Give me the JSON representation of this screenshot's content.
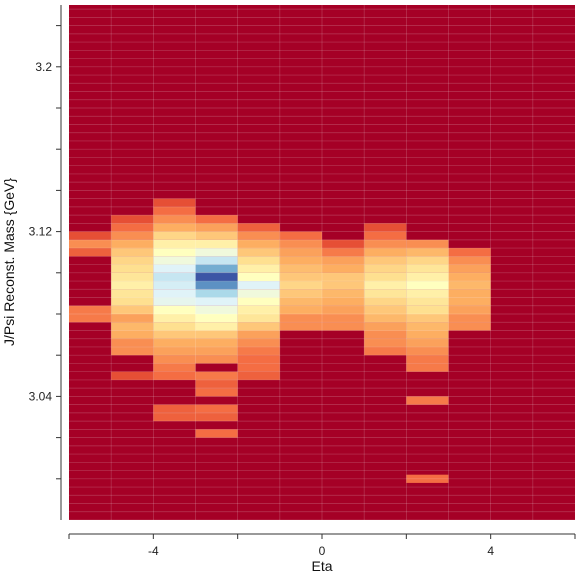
{
  "chart_data": {
    "type": "heatmap",
    "title": "",
    "xlabel": "Eta",
    "ylabel": "J/Psi Reconst. Mass {GeV}",
    "xlim": [
      -6,
      6
    ],
    "ylim": [
      2.98,
      3.23
    ],
    "x_bin_width": 1,
    "y_bin_width": 0.004,
    "x_ticks": [
      -4,
      0,
      4
    ],
    "x_tick_labels": [
      "-4",
      "0",
      "4"
    ],
    "y_ticks": [
      3.04,
      3.12,
      3.2
    ],
    "y_tick_labels": [
      "3.04",
      "3.12",
      "3.2"
    ],
    "background_value": 0,
    "colormap": [
      "#a50026",
      "#d73027",
      "#f46d43",
      "#fdae61",
      "#fee090",
      "#ffffbf",
      "#e0f3f8",
      "#abd9e9",
      "#74add1",
      "#4575b4",
      "#313695"
    ],
    "grid": true,
    "columns": [
      {
        "x": -5.5,
        "cells": [
          [
            3.078,
            0.22
          ],
          [
            3.082,
            0.22
          ],
          [
            3.11,
            0.18
          ],
          [
            3.114,
            0.25
          ],
          [
            3.118,
            0.15
          ]
        ]
      },
      {
        "x": -4.5,
        "cells": [
          [
            3.05,
            0.15
          ],
          [
            3.062,
            0.25
          ],
          [
            3.066,
            0.25
          ],
          [
            3.07,
            0.3
          ],
          [
            3.074,
            0.32
          ],
          [
            3.078,
            0.28
          ],
          [
            3.082,
            0.35
          ],
          [
            3.086,
            0.4
          ],
          [
            3.09,
            0.42
          ],
          [
            3.094,
            0.45
          ],
          [
            3.098,
            0.42
          ],
          [
            3.102,
            0.4
          ],
          [
            3.106,
            0.38
          ],
          [
            3.11,
            0.35
          ],
          [
            3.114,
            0.3
          ],
          [
            3.118,
            0.25
          ],
          [
            3.122,
            0.2
          ],
          [
            3.126,
            0.15
          ]
        ]
      },
      {
        "x": -3.5,
        "cells": [
          [
            3.03,
            0.18
          ],
          [
            3.034,
            0.18
          ],
          [
            3.05,
            0.2
          ],
          [
            3.054,
            0.22
          ],
          [
            3.058,
            0.25
          ],
          [
            3.062,
            0.28
          ],
          [
            3.066,
            0.3
          ],
          [
            3.07,
            0.35
          ],
          [
            3.074,
            0.4
          ],
          [
            3.078,
            0.45
          ],
          [
            3.082,
            0.5
          ],
          [
            3.086,
            0.58
          ],
          [
            3.09,
            0.6
          ],
          [
            3.094,
            0.62
          ],
          [
            3.098,
            0.65
          ],
          [
            3.102,
            0.6
          ],
          [
            3.106,
            0.55
          ],
          [
            3.11,
            0.5
          ],
          [
            3.114,
            0.45
          ],
          [
            3.118,
            0.38
          ],
          [
            3.122,
            0.3
          ],
          [
            3.126,
            0.25
          ],
          [
            3.13,
            0.2
          ],
          [
            3.134,
            0.15
          ]
        ]
      },
      {
        "x": -2.5,
        "cells": [
          [
            3.022,
            0.2
          ],
          [
            3.03,
            0.18
          ],
          [
            3.034,
            0.2
          ],
          [
            3.042,
            0.2
          ],
          [
            3.046,
            0.18
          ],
          [
            3.05,
            0.22
          ],
          [
            3.058,
            0.25
          ],
          [
            3.062,
            0.28
          ],
          [
            3.066,
            0.3
          ],
          [
            3.07,
            0.35
          ],
          [
            3.074,
            0.45
          ],
          [
            3.078,
            0.5
          ],
          [
            3.082,
            0.55
          ],
          [
            3.086,
            0.6
          ],
          [
            3.09,
            0.7
          ],
          [
            3.094,
            0.85
          ],
          [
            3.098,
            0.95
          ],
          [
            3.102,
            0.8
          ],
          [
            3.106,
            0.65
          ],
          [
            3.11,
            0.55
          ],
          [
            3.114,
            0.45
          ],
          [
            3.118,
            0.35
          ],
          [
            3.122,
            0.28
          ],
          [
            3.126,
            0.2
          ]
        ]
      },
      {
        "x": -1.5,
        "cells": [
          [
            3.05,
            0.18
          ],
          [
            3.054,
            0.2
          ],
          [
            3.058,
            0.2
          ],
          [
            3.062,
            0.22
          ],
          [
            3.066,
            0.25
          ],
          [
            3.07,
            0.28
          ],
          [
            3.074,
            0.35
          ],
          [
            3.078,
            0.42
          ],
          [
            3.082,
            0.45
          ],
          [
            3.086,
            0.5
          ],
          [
            3.09,
            0.55
          ],
          [
            3.094,
            0.6
          ],
          [
            3.098,
            0.5
          ],
          [
            3.102,
            0.45
          ],
          [
            3.106,
            0.4
          ],
          [
            3.11,
            0.35
          ],
          [
            3.114,
            0.3
          ],
          [
            3.118,
            0.25
          ],
          [
            3.122,
            0.18
          ]
        ]
      },
      {
        "x": -0.5,
        "cells": [
          [
            3.074,
            0.25
          ],
          [
            3.078,
            0.25
          ],
          [
            3.082,
            0.3
          ],
          [
            3.086,
            0.32
          ],
          [
            3.09,
            0.35
          ],
          [
            3.094,
            0.38
          ],
          [
            3.098,
            0.35
          ],
          [
            3.102,
            0.33
          ],
          [
            3.106,
            0.3
          ],
          [
            3.11,
            0.28
          ],
          [
            3.114,
            0.25
          ],
          [
            3.118,
            0.2
          ]
        ]
      },
      {
        "x": 0.5,
        "cells": [
          [
            3.074,
            0.25
          ],
          [
            3.078,
            0.25
          ],
          [
            3.082,
            0.28
          ],
          [
            3.086,
            0.3
          ],
          [
            3.09,
            0.32
          ],
          [
            3.094,
            0.35
          ],
          [
            3.098,
            0.35
          ],
          [
            3.102,
            0.3
          ],
          [
            3.106,
            0.28
          ],
          [
            3.11,
            0.22
          ],
          [
            3.114,
            0.15
          ]
        ]
      },
      {
        "x": 1.5,
        "cells": [
          [
            3.062,
            0.22
          ],
          [
            3.066,
            0.25
          ],
          [
            3.07,
            0.25
          ],
          [
            3.074,
            0.28
          ],
          [
            3.078,
            0.32
          ],
          [
            3.082,
            0.35
          ],
          [
            3.086,
            0.38
          ],
          [
            3.09,
            0.42
          ],
          [
            3.094,
            0.45
          ],
          [
            3.098,
            0.4
          ],
          [
            3.102,
            0.38
          ],
          [
            3.106,
            0.35
          ],
          [
            3.11,
            0.3
          ],
          [
            3.114,
            0.25
          ],
          [
            3.118,
            0.2
          ],
          [
            3.122,
            0.15
          ]
        ]
      },
      {
        "x": 2.5,
        "cells": [
          [
            3.0,
            0.2
          ],
          [
            3.038,
            0.22
          ],
          [
            3.054,
            0.22
          ],
          [
            3.058,
            0.22
          ],
          [
            3.062,
            0.25
          ],
          [
            3.066,
            0.28
          ],
          [
            3.07,
            0.3
          ],
          [
            3.074,
            0.32
          ],
          [
            3.078,
            0.35
          ],
          [
            3.082,
            0.4
          ],
          [
            3.086,
            0.42
          ],
          [
            3.09,
            0.45
          ],
          [
            3.094,
            0.5
          ],
          [
            3.098,
            0.45
          ],
          [
            3.102,
            0.42
          ],
          [
            3.106,
            0.38
          ],
          [
            3.11,
            0.32
          ],
          [
            3.114,
            0.25
          ]
        ]
      },
      {
        "x": 3.5,
        "cells": [
          [
            3.074,
            0.25
          ],
          [
            3.078,
            0.25
          ],
          [
            3.082,
            0.28
          ],
          [
            3.086,
            0.3
          ],
          [
            3.09,
            0.3
          ],
          [
            3.094,
            0.32
          ],
          [
            3.098,
            0.3
          ],
          [
            3.102,
            0.28
          ],
          [
            3.106,
            0.25
          ],
          [
            3.11,
            0.2
          ]
        ]
      }
    ]
  }
}
